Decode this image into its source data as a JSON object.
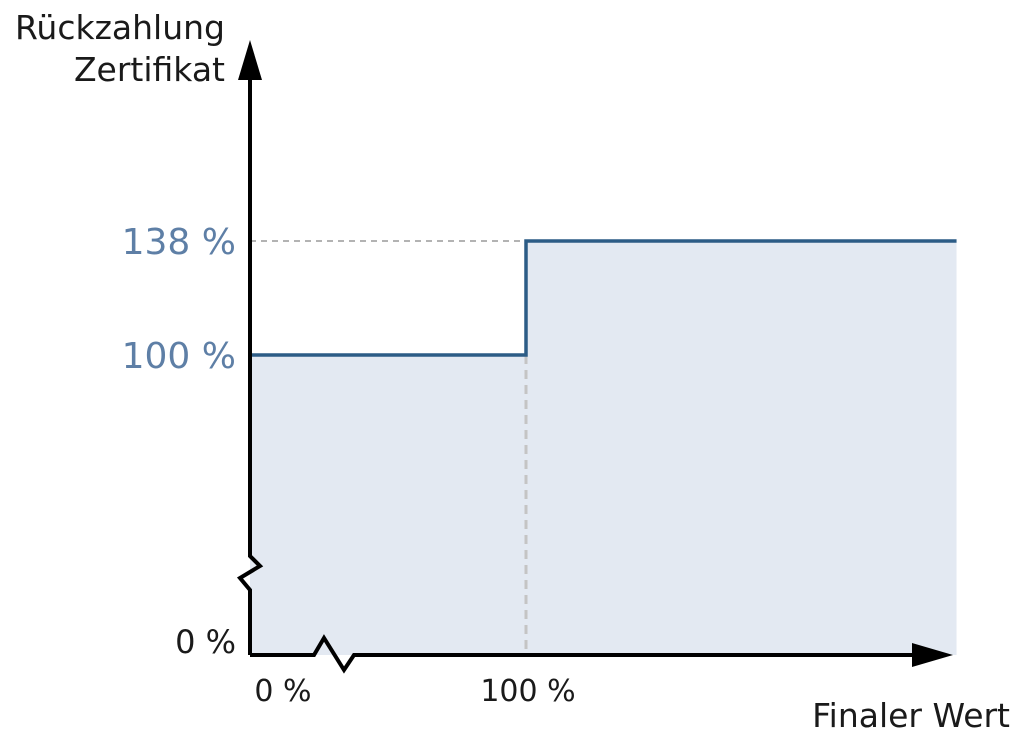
{
  "chart_data": {
    "type": "area",
    "ylabel_line1": "Rückzahlung",
    "ylabel_line2": "Zertifikat",
    "xlabel": "Finaler Wert",
    "x_ticks": [
      {
        "value": 0,
        "label": "0 %"
      },
      {
        "value": 100,
        "label": "100 %"
      }
    ],
    "y_ticks": [
      {
        "value": 0,
        "label": "0 %",
        "highlight": false
      },
      {
        "value": 100,
        "label": "100 %",
        "highlight": true
      },
      {
        "value": 138,
        "label": "138 %",
        "highlight": true
      }
    ],
    "step_threshold_x": 100,
    "series": [
      {
        "x": [
          0,
          100
        ],
        "y": [
          100,
          100
        ]
      },
      {
        "x": [
          100,
          256
        ],
        "y": [
          138,
          138
        ]
      }
    ],
    "axis_breaks": [
      "x",
      "y"
    ],
    "colors": {
      "line": "#2c5c86",
      "fill": "#e3e9f2",
      "highlight_text": "#5e7fa6",
      "text": "#1a1a1a",
      "guide": "#9a9a9a",
      "axis": "#000000"
    }
  }
}
